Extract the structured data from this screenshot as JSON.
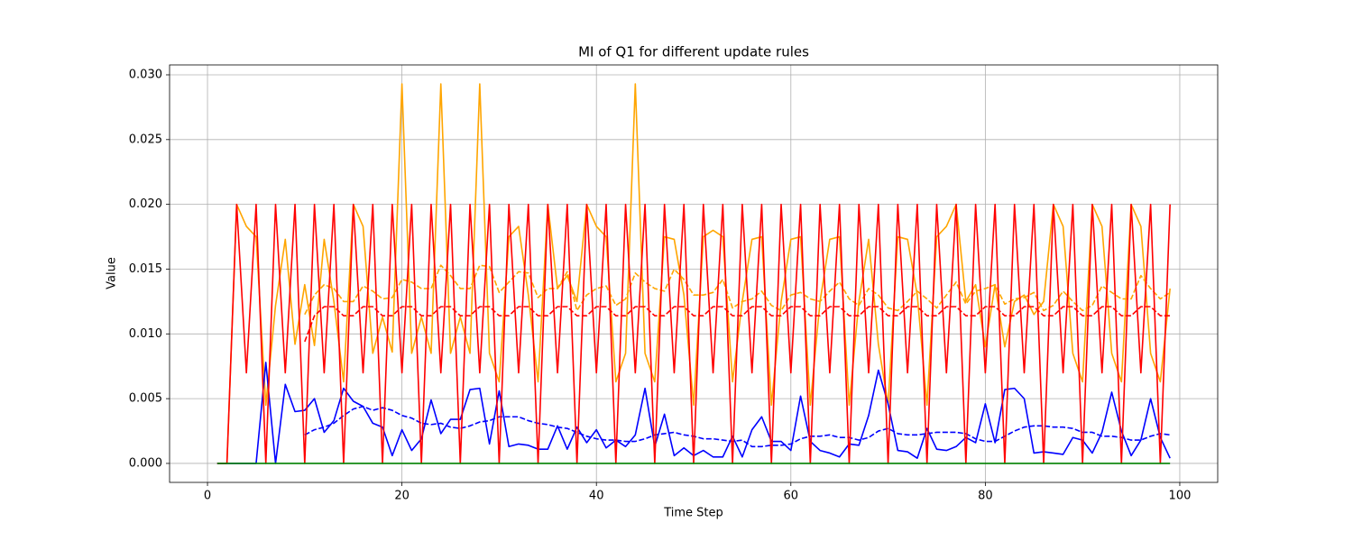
{
  "chart_data": {
    "type": "line",
    "title": "MI of Q1 for different update rules",
    "x_label": "Time Step",
    "y_label": "Value",
    "x": [
      1,
      2,
      3,
      4,
      5,
      6,
      7,
      8,
      9,
      10,
      11,
      12,
      13,
      14,
      15,
      16,
      17,
      18,
      19,
      20,
      21,
      22,
      23,
      24,
      25,
      26,
      27,
      28,
      29,
      30,
      31,
      32,
      33,
      34,
      35,
      36,
      37,
      38,
      39,
      40,
      41,
      42,
      43,
      44,
      45,
      46,
      47,
      48,
      49,
      50,
      51,
      52,
      53,
      54,
      55,
      56,
      57,
      58,
      59,
      60,
      61,
      62,
      63,
      64,
      65,
      66,
      67,
      68,
      69,
      70,
      71,
      72,
      73,
      74,
      75,
      76,
      77,
      78,
      79,
      80,
      81,
      82,
      83,
      84,
      85,
      86,
      87,
      88,
      89,
      90,
      91,
      92,
      93,
      94,
      95,
      96,
      97,
      98,
      99
    ],
    "series": [
      {
        "color": "#ffa500",
        "linestyle": "solid",
        "values": [
          0,
          0,
          0.02,
          0.0183,
          0.0175,
          0.0045,
          0.0122,
          0.0173,
          0.0092,
          0.0138,
          0.0091,
          0.0173,
          0.0125,
          0.0063,
          0.02,
          0.0183,
          0.0085,
          0.0113,
          0.0086,
          0.0293,
          0.0085,
          0.0113,
          0.0085,
          0.0293,
          0.0085,
          0.0113,
          0.0085,
          0.0293,
          0.0085,
          0.0063,
          0.0175,
          0.0183,
          0.013,
          0.0063,
          0.02,
          0.0135,
          0.0145,
          0.0125,
          0.02,
          0.0183,
          0.0175,
          0.0063,
          0.0085,
          0.0293,
          0.0085,
          0.0063,
          0.0175,
          0.0173,
          0.013,
          0.0045,
          0.0175,
          0.018,
          0.0175,
          0.0063,
          0.0125,
          0.0173,
          0.0175,
          0.0045,
          0.0125,
          0.0173,
          0.0175,
          0.0045,
          0.0125,
          0.0173,
          0.0175,
          0.0045,
          0.0125,
          0.0173,
          0.0092,
          0.0045,
          0.0175,
          0.0173,
          0.013,
          0.0045,
          0.0175,
          0.0183,
          0.02,
          0.0125,
          0.0138,
          0.009,
          0.0138,
          0.009,
          0.0125,
          0.013,
          0.0115,
          0.0125,
          0.02,
          0.0183,
          0.0085,
          0.0063,
          0.02,
          0.0183,
          0.0085,
          0.0063,
          0.02,
          0.0183,
          0.0085,
          0.0063,
          0.0135
        ]
      },
      {
        "color": "#ffa500",
        "linestyle": "dashed",
        "values": [
          null,
          null,
          null,
          null,
          null,
          null,
          null,
          null,
          null,
          0.0115,
          0.013,
          0.0138,
          0.0135,
          0.0125,
          0.0125,
          0.0137,
          0.0133,
          0.0127,
          0.0128,
          0.0142,
          0.014,
          0.0135,
          0.0135,
          0.0153,
          0.0145,
          0.0135,
          0.0135,
          0.0153,
          0.0152,
          0.0132,
          0.014,
          0.0148,
          0.0147,
          0.0128,
          0.0135,
          0.0135,
          0.0148,
          0.0118,
          0.013,
          0.0135,
          0.0137,
          0.0122,
          0.0127,
          0.0147,
          0.014,
          0.0135,
          0.0133,
          0.015,
          0.0142,
          0.013,
          0.013,
          0.0132,
          0.0142,
          0.012,
          0.0125,
          0.0127,
          0.0133,
          0.0122,
          0.0118,
          0.013,
          0.0132,
          0.0127,
          0.0125,
          0.0133,
          0.014,
          0.0127,
          0.0122,
          0.0135,
          0.013,
          0.012,
          0.0118,
          0.0125,
          0.0133,
          0.0127,
          0.012,
          0.013,
          0.014,
          0.0123,
          0.0133,
          0.0135,
          0.0138,
          0.0123,
          0.0127,
          0.0128,
          0.0132,
          0.0118,
          0.0122,
          0.0133,
          0.0125,
          0.0118,
          0.0122,
          0.0137,
          0.0132,
          0.0127,
          0.0127,
          0.0145,
          0.0135,
          0.0127,
          0.0132
        ]
      },
      {
        "color": "#0000ff",
        "linestyle": "solid",
        "values": [
          0,
          0,
          0,
          0,
          0,
          0.0078,
          0,
          0.0061,
          0.004,
          0.0041,
          0.005,
          0.0024,
          0.0033,
          0.0058,
          0.0048,
          0.0044,
          0.0031,
          0.0028,
          0.0006,
          0.0026,
          0.001,
          0.0019,
          0.0049,
          0.0023,
          0.0034,
          0.0034,
          0.0057,
          0.0058,
          0.0015,
          0.0056,
          0.0013,
          0.0015,
          0.0014,
          0.0011,
          0.0011,
          0.0029,
          0.0011,
          0.0028,
          0.0016,
          0.0026,
          0.0012,
          0.0018,
          0.0013,
          0.0022,
          0.0058,
          0.0013,
          0.0038,
          0.0006,
          0.0012,
          0.0006,
          0.001,
          0.0005,
          0.0005,
          0.0021,
          0.0005,
          0.0026,
          0.0036,
          0.0017,
          0.0017,
          0.001,
          0.0052,
          0.0017,
          0.001,
          0.0008,
          0.0005,
          0.0015,
          0.0014,
          0.0037,
          0.0072,
          0.0046,
          0.001,
          0.0009,
          0.0004,
          0.0027,
          0.0011,
          0.001,
          0.0013,
          0.002,
          0.0016,
          0.0046,
          0.0016,
          0.0057,
          0.0058,
          0.005,
          0.0008,
          0.0009,
          0.0008,
          0.0007,
          0.002,
          0.0018,
          0.0008,
          0.0024,
          0.0055,
          0.0025,
          0.0006,
          0.0018,
          0.005,
          0.002,
          0.0004
        ]
      },
      {
        "color": "#0000ff",
        "linestyle": "dashed",
        "values": [
          null,
          null,
          null,
          null,
          null,
          null,
          null,
          null,
          null,
          0.0022,
          0.0026,
          0.0028,
          0.0031,
          0.0037,
          0.0042,
          0.0044,
          0.0041,
          0.0043,
          0.0041,
          0.0037,
          0.0035,
          0.0031,
          0.003,
          0.0031,
          0.0028,
          0.0027,
          0.0029,
          0.0032,
          0.0033,
          0.0036,
          0.0036,
          0.0036,
          0.0033,
          0.0031,
          0.003,
          0.0028,
          0.0027,
          0.0024,
          0.0021,
          0.0019,
          0.0018,
          0.0018,
          0.0017,
          0.0017,
          0.0019,
          0.0022,
          0.0023,
          0.0024,
          0.0022,
          0.0021,
          0.0019,
          0.0019,
          0.0018,
          0.0017,
          0.0018,
          0.0013,
          0.0013,
          0.0014,
          0.0014,
          0.0015,
          0.0019,
          0.0021,
          0.0021,
          0.0022,
          0.002,
          0.002,
          0.0018,
          0.002,
          0.0025,
          0.0027,
          0.0023,
          0.0022,
          0.0022,
          0.0023,
          0.0024,
          0.0024,
          0.0024,
          0.0023,
          0.0019,
          0.0017,
          0.0017,
          0.0021,
          0.0025,
          0.0028,
          0.0029,
          0.0029,
          0.0028,
          0.0028,
          0.0027,
          0.0024,
          0.0024,
          0.0021,
          0.0021,
          0.002,
          0.0018,
          0.0018,
          0.0021,
          0.0023,
          0.0022
        ]
      },
      {
        "color": "#ff0000",
        "linestyle": "solid",
        "values": [
          0,
          0,
          0.02,
          0.007,
          0.02,
          0,
          0.02,
          0.007,
          0.02,
          0,
          0.02,
          0.007,
          0.02,
          0,
          0.02,
          0.007,
          0.02,
          0,
          0.02,
          0.007,
          0.02,
          0,
          0.02,
          0.007,
          0.02,
          0,
          0.02,
          0.007,
          0.02,
          0,
          0.02,
          0.007,
          0.02,
          0,
          0.02,
          0.007,
          0.02,
          0,
          0.02,
          0.007,
          0.02,
          0,
          0.02,
          0.007,
          0.02,
          0,
          0.02,
          0.007,
          0.02,
          0,
          0.02,
          0.007,
          0.02,
          0,
          0.02,
          0.007,
          0.02,
          0,
          0.02,
          0.007,
          0.02,
          0,
          0.02,
          0.007,
          0.02,
          0,
          0.02,
          0.007,
          0.02,
          0,
          0.02,
          0.007,
          0.02,
          0,
          0.02,
          0.007,
          0.02,
          0,
          0.02,
          0.007,
          0.02,
          0,
          0.02,
          0.007,
          0.02,
          0,
          0.02,
          0.007,
          0.02,
          0,
          0.02,
          0.007,
          0.02,
          0,
          0.02,
          0.007,
          0.02,
          0,
          0.02
        ]
      },
      {
        "color": "#ff0000",
        "linestyle": "dashed",
        "values": [
          null,
          null,
          null,
          null,
          null,
          null,
          null,
          null,
          null,
          0.0094,
          0.0114,
          0.0121,
          0.0121,
          0.0114,
          0.0114,
          0.0121,
          0.0121,
          0.0114,
          0.0114,
          0.0121,
          0.0121,
          0.0114,
          0.0114,
          0.0121,
          0.0121,
          0.0114,
          0.0114,
          0.0121,
          0.0121,
          0.0114,
          0.0114,
          0.0121,
          0.0121,
          0.0114,
          0.0114,
          0.0121,
          0.0121,
          0.0114,
          0.0114,
          0.0121,
          0.0121,
          0.0114,
          0.0114,
          0.0121,
          0.0121,
          0.0114,
          0.0114,
          0.0121,
          0.0121,
          0.0114,
          0.0114,
          0.0121,
          0.0121,
          0.0114,
          0.0114,
          0.0121,
          0.0121,
          0.0114,
          0.0114,
          0.0121,
          0.0121,
          0.0114,
          0.0114,
          0.0121,
          0.0121,
          0.0114,
          0.0114,
          0.0121,
          0.0121,
          0.0114,
          0.0114,
          0.0121,
          0.0121,
          0.0114,
          0.0114,
          0.0121,
          0.0121,
          0.0114,
          0.0114,
          0.0121,
          0.0121,
          0.0114,
          0.0114,
          0.0121,
          0.0121,
          0.0114,
          0.0114,
          0.0121,
          0.0121,
          0.0114,
          0.0114,
          0.0121,
          0.0121,
          0.0114,
          0.0114,
          0.0121,
          0.0121,
          0.0114,
          0.0114
        ]
      },
      {
        "color": "#008000",
        "linestyle": "solid",
        "values": [
          0,
          0,
          0,
          0,
          0,
          0,
          0,
          0,
          0,
          0,
          0,
          0,
          0,
          0,
          0,
          0,
          0,
          0,
          0,
          0,
          0,
          0,
          0,
          0,
          0,
          0,
          0,
          0,
          0,
          0,
          0,
          0,
          0,
          0,
          0,
          0,
          0,
          0,
          0,
          0,
          0,
          0,
          0,
          0,
          0,
          0,
          0,
          0,
          0,
          0,
          0,
          0,
          0,
          0,
          0,
          0,
          0,
          0,
          0,
          0,
          0,
          0,
          0,
          0,
          0,
          0,
          0,
          0,
          0,
          0,
          0,
          0,
          0,
          0,
          0,
          0,
          0,
          0,
          0,
          0,
          0,
          0,
          0,
          0,
          0,
          0,
          0,
          0,
          0,
          0,
          0,
          0,
          0,
          0,
          0,
          0,
          0,
          0,
          0
        ]
      }
    ],
    "xlim": [
      -3.9,
      103.9
    ],
    "ylim": [
      -0.001465,
      0.030765
    ],
    "xticks": [
      0,
      20,
      40,
      60,
      80,
      100
    ],
    "yticks": [
      {
        "value": 0,
        "label": "0.000"
      },
      {
        "value": 0.005,
        "label": "0.005"
      },
      {
        "value": 0.01,
        "label": "0.010"
      },
      {
        "value": 0.015,
        "label": "0.015"
      },
      {
        "value": 0.02,
        "label": "0.020"
      },
      {
        "value": 0.025,
        "label": "0.025"
      },
      {
        "value": 0.03,
        "label": "0.030"
      }
    ],
    "grid": true
  }
}
